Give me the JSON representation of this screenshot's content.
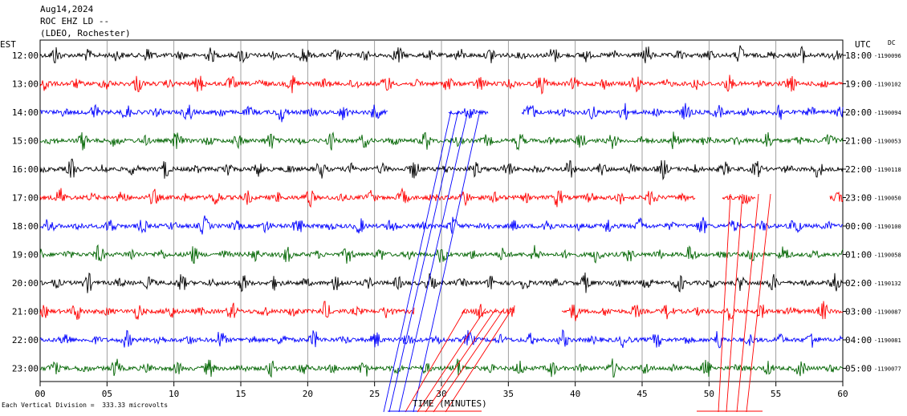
{
  "header": {
    "date": "Aug14,2024",
    "station": "ROC EHZ LD --",
    "network": "(LDEO, Rochester)"
  },
  "left_zone": "EST",
  "right_zone": "UTC",
  "dc_label": "DC",
  "scale_note": "Each Vertical Division =  333.33 microvolts",
  "chart_data": {
    "type": "line",
    "xlabel": "TIME (MINUTES)",
    "xlim": [
      0,
      60
    ],
    "x_ticks": [
      "00",
      "05",
      "10",
      "15",
      "20",
      "25",
      "30",
      "35",
      "40",
      "45",
      "50",
      "55",
      "60"
    ],
    "x_tick_values": [
      0,
      5,
      10,
      15,
      20,
      25,
      30,
      35,
      40,
      45,
      50,
      55,
      60
    ],
    "grid": true,
    "traces": [
      {
        "est": "12:00",
        "utc": "18:00",
        "dc": "1190096",
        "color": "#000000"
      },
      {
        "est": "13:00",
        "utc": "19:00",
        "dc": "1190102",
        "color": "#ff0000"
      },
      {
        "est": "14:00",
        "utc": "20:00",
        "dc": "1190094",
        "color": "#0000ff"
      },
      {
        "est": "15:00",
        "utc": "21:00",
        "dc": "1190053",
        "color": "#006400"
      },
      {
        "est": "16:00",
        "utc": "22:00",
        "dc": "1190118",
        "color": "#000000"
      },
      {
        "est": "17:00",
        "utc": "23:00",
        "dc": "1190050",
        "color": "#ff0000"
      },
      {
        "est": "18:00",
        "utc": "00:00",
        "dc": "1190100",
        "color": "#0000ff"
      },
      {
        "est": "19:00",
        "utc": "01:00",
        "dc": "1190058",
        "color": "#006400"
      },
      {
        "est": "20:00",
        "utc": "02:00",
        "dc": "1190132",
        "color": "#000000"
      },
      {
        "est": "21:00",
        "utc": "03:00",
        "dc": "1190087",
        "color": "#ff0000"
      },
      {
        "est": "22:00",
        "utc": "04:00",
        "dc": "1190081",
        "color": "#0000ff"
      },
      {
        "est": "23:00",
        "utc": "05:00",
        "dc": "1190077",
        "color": "#006400"
      }
    ]
  }
}
